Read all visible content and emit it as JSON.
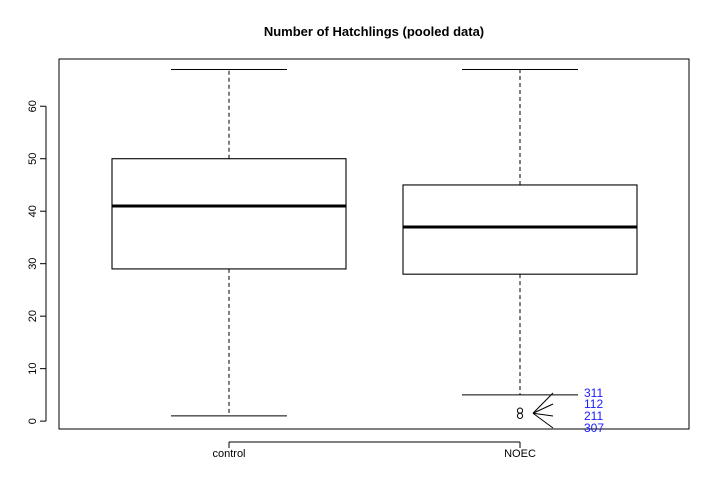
{
  "chart_data": {
    "type": "boxplot",
    "title": "Number of Hatchlings (pooled data)",
    "xlabel": "",
    "ylabel": "",
    "ylim": [
      -1.5,
      69
    ],
    "y_ticks": [
      0,
      10,
      20,
      30,
      40,
      50,
      60
    ],
    "grid": false,
    "categories": [
      "control",
      "NOEC"
    ],
    "boxes": [
      {
        "category": "control",
        "min": 1,
        "q1": 29,
        "median": 41,
        "q3": 50,
        "max": 67,
        "outliers": []
      },
      {
        "category": "NOEC",
        "min": 5,
        "q1": 28,
        "median": 37,
        "q3": 45,
        "max": 67,
        "outliers": [
          1,
          2
        ]
      }
    ],
    "outlier_labels": [
      "311",
      "112",
      "211",
      "307"
    ]
  }
}
